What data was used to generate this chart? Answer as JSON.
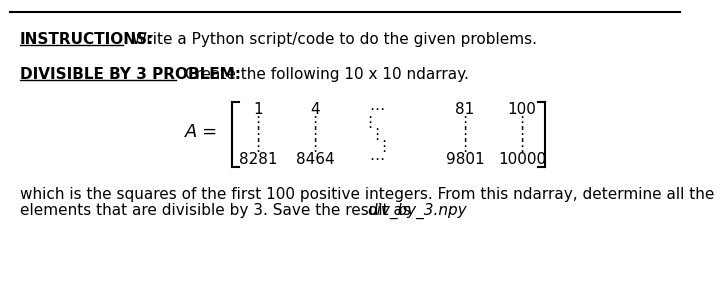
{
  "bg_color": "#ffffff",
  "fig_width": 6.7,
  "fig_height": 2.77,
  "line1_bold": "INSTRUCTIONS:",
  "line1_normal": " Write a Python script/code to do the given problems.",
  "line2_bold": "DIVISIBLE BY 3 PROBLEM:",
  "line2_normal": " Create the following 10 x 10 ndarray.",
  "matrix_label": "A =",
  "matrix_top_row": [
    "1",
    "4",
    "⋯",
    "81",
    "100"
  ],
  "matrix_bottom_row": [
    "8281",
    "8464",
    "⋯",
    "9801",
    "10000"
  ],
  "vdots": "⋮",
  "bottom_text1": "which is the squares of the first 100 positive integers. From this ndarray, determine all the",
  "bottom_text2_normal": "elements that are divisible by 3. Save the result as ",
  "bottom_text2_italic": "div_by_3.npy",
  "font_size_main": 11,
  "font_size_matrix": 11
}
